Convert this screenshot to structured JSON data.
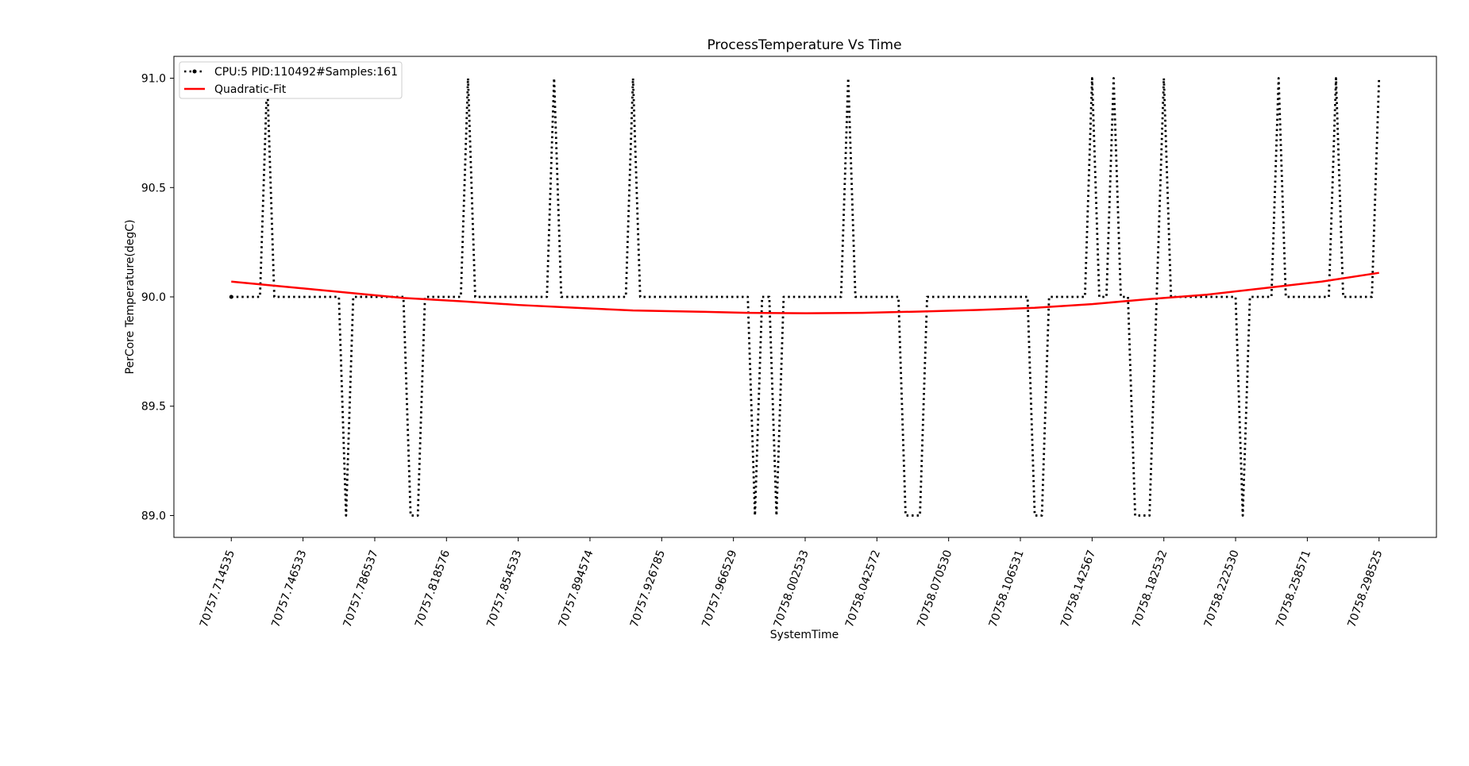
{
  "chart_data": {
    "type": "line",
    "title": "ProcessTemperature Vs Time",
    "xlabel": "SystemTime",
    "ylabel": "PerCore Temperature(degC)",
    "ylim": [
      88.9,
      91.1
    ],
    "yticks": [
      89.0,
      89.5,
      90.0,
      90.5,
      91.0
    ],
    "ytick_labels": [
      "89.0",
      "89.5",
      "90.0",
      "90.5",
      "91.0"
    ],
    "xtick_labels": [
      "70757.714535",
      "70757.746533",
      "70757.786537",
      "70757.818576",
      "70757.854533",
      "70757.894574",
      "70757.926785",
      "70757.966529",
      "70758.002533",
      "70758.042572",
      "70758.070530",
      "70758.106531",
      "70758.142567",
      "70758.182532",
      "70758.222530",
      "70758.258571",
      "70758.298525"
    ],
    "x_sample_range": [
      0,
      160
    ],
    "xlim": [
      -8,
      168
    ],
    "grid": false,
    "legend_position": "top-left",
    "series": [
      {
        "name": "CPU:5 PID:110492#Samples:161",
        "style": "dotted",
        "color": "#000000",
        "marker": "point",
        "points": [
          [
            0,
            90.0
          ],
          [
            1,
            90.0
          ],
          [
            2,
            90.0
          ],
          [
            3,
            90.0
          ],
          [
            4,
            90.0
          ],
          [
            5,
            91.0
          ],
          [
            6,
            90.0
          ],
          [
            7,
            90.0
          ],
          [
            8,
            90.0
          ],
          [
            9,
            90.0
          ],
          [
            10,
            90.0
          ],
          [
            11,
            90.0
          ],
          [
            12,
            90.0
          ],
          [
            13,
            90.0
          ],
          [
            14,
            90.0
          ],
          [
            15,
            90.0
          ],
          [
            16,
            89.0
          ],
          [
            17,
            90.0
          ],
          [
            18,
            90.0
          ],
          [
            19,
            90.0
          ],
          [
            20,
            90.0
          ],
          [
            21,
            90.0
          ],
          [
            22,
            90.0
          ],
          [
            23,
            90.0
          ],
          [
            24,
            90.0
          ],
          [
            25,
            89.0
          ],
          [
            26,
            89.0
          ],
          [
            27,
            90.0
          ],
          [
            28,
            90.0
          ],
          [
            29,
            90.0
          ],
          [
            30,
            90.0
          ],
          [
            31,
            90.0
          ],
          [
            32,
            90.0
          ],
          [
            33,
            91.0
          ],
          [
            34,
            90.0
          ],
          [
            35,
            90.0
          ],
          [
            36,
            90.0
          ],
          [
            37,
            90.0
          ],
          [
            38,
            90.0
          ],
          [
            39,
            90.0
          ],
          [
            40,
            90.0
          ],
          [
            41,
            90.0
          ],
          [
            42,
            90.0
          ],
          [
            43,
            90.0
          ],
          [
            44,
            90.0
          ],
          [
            45,
            91.0
          ],
          [
            46,
            90.0
          ],
          [
            47,
            90.0
          ],
          [
            48,
            90.0
          ],
          [
            49,
            90.0
          ],
          [
            50,
            90.0
          ],
          [
            51,
            90.0
          ],
          [
            52,
            90.0
          ],
          [
            53,
            90.0
          ],
          [
            54,
            90.0
          ],
          [
            55,
            90.0
          ],
          [
            56,
            91.0
          ],
          [
            57,
            90.0
          ],
          [
            58,
            90.0
          ],
          [
            59,
            90.0
          ],
          [
            60,
            90.0
          ],
          [
            61,
            90.0
          ],
          [
            62,
            90.0
          ],
          [
            63,
            90.0
          ],
          [
            64,
            90.0
          ],
          [
            65,
            90.0
          ],
          [
            66,
            90.0
          ],
          [
            67,
            90.0
          ],
          [
            68,
            90.0
          ],
          [
            69,
            90.0
          ],
          [
            70,
            90.0
          ],
          [
            71,
            90.0
          ],
          [
            72,
            90.0
          ],
          [
            73,
            89.0
          ],
          [
            74,
            90.0
          ],
          [
            75,
            90.0
          ],
          [
            76,
            89.0
          ],
          [
            77,
            90.0
          ],
          [
            78,
            90.0
          ],
          [
            79,
            90.0
          ],
          [
            80,
            90.0
          ],
          [
            81,
            90.0
          ],
          [
            82,
            90.0
          ],
          [
            83,
            90.0
          ],
          [
            84,
            90.0
          ],
          [
            85,
            90.0
          ],
          [
            86,
            91.0
          ],
          [
            87,
            90.0
          ],
          [
            88,
            90.0
          ],
          [
            89,
            90.0
          ],
          [
            90,
            90.0
          ],
          [
            91,
            90.0
          ],
          [
            92,
            90.0
          ],
          [
            93,
            90.0
          ],
          [
            94,
            89.0
          ],
          [
            95,
            89.0
          ],
          [
            96,
            89.0
          ],
          [
            97,
            90.0
          ],
          [
            98,
            90.0
          ],
          [
            99,
            90.0
          ],
          [
            100,
            90.0
          ],
          [
            101,
            90.0
          ],
          [
            102,
            90.0
          ],
          [
            103,
            90.0
          ],
          [
            104,
            90.0
          ],
          [
            105,
            90.0
          ],
          [
            106,
            90.0
          ],
          [
            107,
            90.0
          ],
          [
            108,
            90.0
          ],
          [
            109,
            90.0
          ],
          [
            110,
            90.0
          ],
          [
            111,
            90.0
          ],
          [
            112,
            89.0
          ],
          [
            113,
            89.0
          ],
          [
            114,
            90.0
          ],
          [
            115,
            90.0
          ],
          [
            116,
            90.0
          ],
          [
            117,
            90.0
          ],
          [
            118,
            90.0
          ],
          [
            119,
            90.0
          ],
          [
            120,
            91.0
          ],
          [
            121,
            90.0
          ],
          [
            122,
            90.0
          ],
          [
            123,
            91.0
          ],
          [
            124,
            90.0
          ],
          [
            125,
            90.0
          ],
          [
            126,
            89.0
          ],
          [
            127,
            89.0
          ],
          [
            128,
            89.0
          ],
          [
            129,
            90.0
          ],
          [
            130,
            91.0
          ],
          [
            131,
            90.0
          ],
          [
            132,
            90.0
          ],
          [
            133,
            90.0
          ],
          [
            134,
            90.0
          ],
          [
            135,
            90.0
          ],
          [
            136,
            90.0
          ],
          [
            137,
            90.0
          ],
          [
            138,
            90.0
          ],
          [
            139,
            90.0
          ],
          [
            140,
            90.0
          ],
          [
            141,
            89.0
          ],
          [
            142,
            90.0
          ],
          [
            143,
            90.0
          ],
          [
            144,
            90.0
          ],
          [
            145,
            90.0
          ],
          [
            146,
            91.0
          ],
          [
            147,
            90.0
          ],
          [
            148,
            90.0
          ],
          [
            149,
            90.0
          ],
          [
            150,
            90.0
          ],
          [
            151,
            90.0
          ],
          [
            152,
            90.0
          ],
          [
            153,
            90.0
          ],
          [
            154,
            91.0
          ],
          [
            155,
            90.0
          ],
          [
            156,
            90.0
          ],
          [
            157,
            90.0
          ],
          [
            158,
            90.0
          ],
          [
            159,
            90.0
          ],
          [
            160,
            91.0
          ]
        ]
      },
      {
        "name": "Quadratic-Fit",
        "style": "solid",
        "color": "#ff0000",
        "points": [
          [
            0,
            90.07
          ],
          [
            8,
            90.045
          ],
          [
            16,
            90.02
          ],
          [
            24,
            89.995
          ],
          [
            32,
            89.98
          ],
          [
            40,
            89.963
          ],
          [
            48,
            89.95
          ],
          [
            56,
            89.938
          ],
          [
            64,
            89.933
          ],
          [
            72,
            89.927
          ],
          [
            80,
            89.925
          ],
          [
            88,
            89.927
          ],
          [
            96,
            89.933
          ],
          [
            104,
            89.94
          ],
          [
            112,
            89.95
          ],
          [
            120,
            89.967
          ],
          [
            128,
            89.99
          ],
          [
            136,
            90.01
          ],
          [
            144,
            90.04
          ],
          [
            152,
            90.07
          ],
          [
            160,
            90.11
          ]
        ]
      }
    ]
  }
}
